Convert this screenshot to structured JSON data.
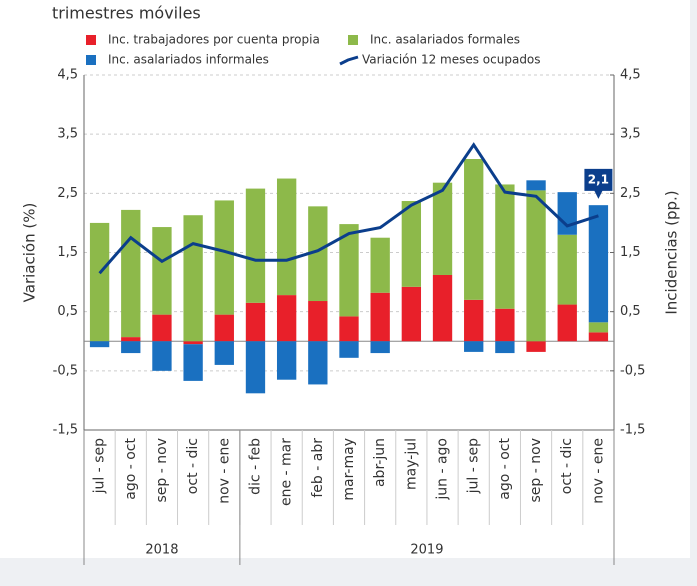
{
  "chart_data": {
    "type": "bar",
    "subtitle": "trimestres móviles",
    "categories": [
      "jul - sep",
      "ago - oct",
      "sep - nov",
      "oct - dic",
      "nov - ene",
      "dic - feb",
      "ene - mar",
      "feb - abr",
      "mar-may",
      "abr-jun",
      "may-jul",
      "jun - ago",
      "jul - sep",
      "ago - oct",
      "sep - nov",
      "oct - dic",
      "nov - ene"
    ],
    "groups": [
      {
        "label": "2018",
        "span": 5
      },
      {
        "label": "2019",
        "span": 12
      }
    ],
    "series": [
      {
        "name": "Inc. trabajadores por cuenta propia",
        "color": "#e8202a",
        "type": "bar",
        "values": [
          0,
          0.07,
          0.45,
          -0.05,
          0.45,
          0.65,
          0.78,
          0.68,
          0.42,
          0.82,
          0.92,
          1.12,
          0.7,
          0.55,
          -0.18,
          0.62,
          0.15
        ]
      },
      {
        "name": "Inc. asalariados formales",
        "color": "#8db94a",
        "type": "bar",
        "values": [
          2.0,
          2.15,
          1.48,
          2.13,
          1.93,
          1.93,
          1.97,
          1.6,
          1.56,
          0.93,
          1.45,
          1.56,
          2.38,
          2.1,
          2.55,
          1.18,
          0.17
        ]
      },
      {
        "name": "Inc. asalariados informales",
        "color": "#1a70c0",
        "type": "bar",
        "values": [
          -0.1,
          -0.2,
          -0.5,
          -0.62,
          -0.4,
          -0.88,
          -0.65,
          -0.73,
          -0.28,
          -0.2,
          0,
          0,
          -0.18,
          -0.2,
          0.17,
          0.72,
          1.98
        ]
      },
      {
        "name": "Variación 12 meses ocupados",
        "color": "#0b3e8c",
        "type": "line",
        "axis": "y2",
        "values": [
          1.15,
          1.75,
          1.35,
          1.65,
          1.52,
          1.37,
          1.37,
          1.53,
          1.82,
          1.92,
          2.3,
          2.55,
          3.32,
          2.52,
          2.45,
          1.95,
          2.12
        ],
        "value_labels": [
          null,
          null,
          null,
          null,
          null,
          null,
          null,
          null,
          null,
          null,
          null,
          null,
          null,
          null,
          null,
          null,
          "2,1"
        ]
      }
    ],
    "ylabel": "Variación (%)",
    "y2label": "Incidencias (pp.)",
    "ylim": [
      -1.5,
      4.5
    ],
    "yticks": [
      {
        "value": 4.5,
        "label": "4,5"
      },
      {
        "value": 3.5,
        "label": "3,5"
      },
      {
        "value": 2.5,
        "label": "2,5"
      },
      {
        "value": 1.5,
        "label": "1,5"
      },
      {
        "value": 0.5,
        "label": "0,5"
      },
      {
        "value": -0.5,
        "label": "-0,5"
      },
      {
        "value": -1.5,
        "label": "-1,5"
      }
    ],
    "y2lim": [
      -1.5,
      4.5
    ],
    "y2ticks": [
      {
        "value": 4.5,
        "label": "4,5"
      },
      {
        "value": 3.5,
        "label": "3,5"
      },
      {
        "value": 2.5,
        "label": "2,5"
      },
      {
        "value": 1.5,
        "label": "1,5"
      },
      {
        "value": 0.5,
        "label": "0,5"
      },
      {
        "value": -0.5,
        "label": "-0,5"
      },
      {
        "value": -1.5,
        "label": "-1,5"
      }
    ],
    "grid": true
  }
}
